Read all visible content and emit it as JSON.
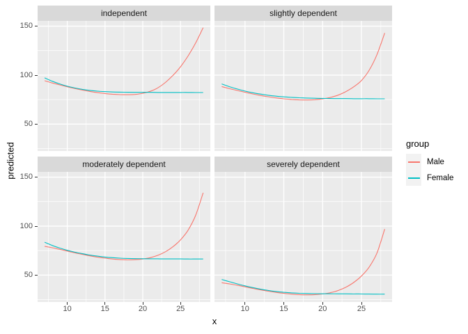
{
  "chart_data": {
    "type": "line",
    "title": "",
    "xlabel": "x",
    "ylabel": "predicted",
    "x_ticks": [
      10,
      15,
      20,
      25
    ],
    "y_ticks": [
      50,
      100,
      150
    ],
    "x_minor_ticks": [
      7.5,
      12.5,
      17.5,
      22.5,
      27.5
    ],
    "y_minor_ticks": [
      25,
      75,
      125
    ],
    "xlim": [
      6.07,
      28.95
    ],
    "ylim": [
      22.5,
      155.4
    ],
    "grid": "on",
    "facet_layout": "2x2",
    "legend": {
      "title": "group",
      "position": "right",
      "entries": [
        {
          "name": "Male",
          "color": "#F8766D"
        },
        {
          "name": "Female",
          "color": "#00BFC4"
        }
      ]
    },
    "x_values": [
      7,
      8,
      9,
      10,
      11,
      12,
      13,
      14,
      15,
      16,
      17,
      18,
      19,
      20,
      21,
      22,
      23,
      24,
      25,
      26,
      27,
      28
    ],
    "panels": [
      {
        "title": "independent",
        "series": [
          {
            "name": "Male",
            "y": [
              94.3,
              92.0,
              90.0,
              88.1,
              86.3,
              84.7,
              83.3,
              82.1,
              81.2,
              80.5,
              80.1,
              80.0,
              80.3,
              81.4,
              83.5,
              87.0,
              92.5,
              99.7,
              108.5,
              119.5,
              132.8,
              148.5
            ]
          },
          {
            "name": "Female",
            "y": [
              97.2,
              93.8,
              91.0,
              88.7,
              86.9,
              85.5,
              84.4,
              83.6,
              83.1,
              82.8,
              82.6,
              82.5,
              82.4,
              82.4,
              82.4,
              82.3,
              82.3,
              82.3,
              82.3,
              82.3,
              82.2,
              82.2
            ]
          }
        ]
      },
      {
        "title": "slightly dependent",
        "series": [
          {
            "name": "Male",
            "y": [
              88.3,
              86.2,
              84.3,
              82.5,
              80.8,
              79.2,
              77.9,
              76.7,
              75.8,
              75.1,
              74.7,
              74.6,
              74.9,
              75.7,
              77.2,
              79.6,
              83.2,
              88.0,
              94.5,
              105.0,
              121.0,
              143.0
            ]
          },
          {
            "name": "Female",
            "y": [
              91.0,
              88.2,
              85.8,
              83.7,
              82.0,
              80.6,
              79.4,
              78.5,
              77.8,
              77.3,
              76.9,
              76.6,
              76.4,
              76.2,
              76.1,
              76.0,
              76.0,
              75.9,
              75.9,
              75.9,
              75.8,
              75.8
            ]
          }
        ]
      },
      {
        "title": "moderately dependent",
        "series": [
          {
            "name": "Male",
            "y": [
              79.4,
              77.9,
              76.3,
              74.5,
              72.7,
              71.1,
              69.6,
              68.3,
              67.3,
              66.4,
              65.8,
              65.5,
              65.7,
              66.4,
              67.8,
              70.2,
              73.8,
              78.9,
              86.0,
              95.8,
              111.0,
              134.0
            ]
          },
          {
            "name": "Female",
            "y": [
              83.5,
              80.3,
              77.6,
              75.3,
              73.4,
              71.8,
              70.4,
              69.3,
              68.4,
              67.8,
              67.3,
              67.0,
              66.8,
              66.7,
              66.6,
              66.6,
              66.5,
              66.5,
              66.5,
              66.4,
              66.4,
              66.4
            ]
          }
        ]
      },
      {
        "title": "severely dependent",
        "series": [
          {
            "name": "Male",
            "y": [
              42.2,
              41.0,
              39.6,
              38.0,
              36.4,
              34.9,
              33.5,
              32.3,
              31.3,
              30.5,
              30.0,
              29.8,
              30.0,
              30.7,
              32.0,
              34.2,
              37.6,
              42.4,
              49.0,
              58.2,
              72.5,
              97.0
            ]
          },
          {
            "name": "Female",
            "y": [
              45.5,
              43.2,
              41.0,
              39.0,
              37.2,
              35.6,
              34.3,
              33.2,
              32.4,
              31.8,
              31.4,
              31.2,
              31.0,
              30.9,
              30.9,
              30.8,
              30.8,
              30.7,
              30.7,
              30.6,
              30.5,
              30.5
            ]
          }
        ]
      }
    ]
  }
}
